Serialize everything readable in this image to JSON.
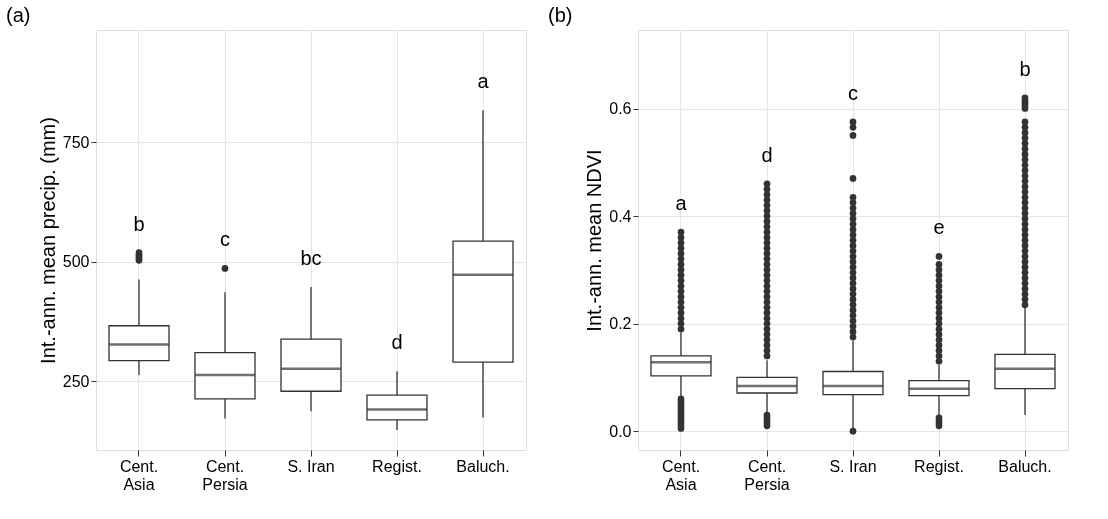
{
  "chart_data": [
    {
      "type": "box",
      "title": "(a)",
      "ylabel": "Int.-ann. mean precip. (mm)",
      "categories": [
        "Cent.\nAsia",
        "Cent.\nPersia",
        "S. Iran",
        "Regist.",
        "Baluch."
      ],
      "ylim": [
        106,
        985
      ],
      "yticks": [
        250,
        500,
        750
      ],
      "grid": true,
      "boxes": [
        {
          "low": 263,
          "q1": 293,
          "median": 327,
          "q3": 366,
          "high": 463,
          "outliers": [
            503,
            507,
            511,
            515,
            519
          ]
        },
        {
          "low": 172,
          "q1": 213,
          "median": 263,
          "q3": 310,
          "high": 436,
          "outliers": [
            486
          ]
        },
        {
          "low": 187,
          "q1": 229,
          "median": 276,
          "q3": 338,
          "high": 447
        },
        {
          "low": 148,
          "q1": 169,
          "median": 191,
          "q3": 221,
          "high": 271
        },
        {
          "low": 174,
          "q1": 290,
          "median": 473,
          "q3": 543,
          "high": 817
        }
      ],
      "annotations": [
        "b",
        "c",
        "bc",
        "d",
        "a"
      ]
    },
    {
      "type": "box",
      "title": "(b)",
      "ylabel": "Int.-ann. mean NDVI",
      "categories": [
        "Cent.\nAsia",
        "Cent.\nPersia",
        "S. Iran",
        "Regist.",
        "Baluch."
      ],
      "ylim": [
        -0.035,
        0.746
      ],
      "yticks": [
        {
          "value": 0,
          "label": "0.0"
        },
        0.2,
        0.4,
        0.6
      ],
      "grid": true,
      "boxes": [
        {
          "low": 0.065,
          "q1": 0.103,
          "median": 0.128,
          "q3": 0.14,
          "high": 0.184,
          "outliers": [
            0.005,
            0.01,
            0.015,
            0.02,
            0.025,
            0.03,
            0.035,
            0.04,
            0.045,
            0.05,
            0.055,
            0.06,
            0.19,
            0.2,
            0.21,
            0.22,
            0.23,
            0.24,
            0.25,
            0.26,
            0.27,
            0.28,
            0.29,
            0.3,
            0.31,
            0.32,
            0.33,
            0.34,
            0.35,
            0.36,
            0.37
          ]
        },
        {
          "low": 0.035,
          "q1": 0.071,
          "median": 0.084,
          "q3": 0.1,
          "high": 0.132,
          "outliers": [
            0.01,
            0.015,
            0.02,
            0.025,
            0.03,
            0.14,
            0.15,
            0.16,
            0.17,
            0.18,
            0.19,
            0.2,
            0.21,
            0.22,
            0.23,
            0.24,
            0.25,
            0.26,
            0.27,
            0.28,
            0.29,
            0.3,
            0.31,
            0.32,
            0.33,
            0.34,
            0.35,
            0.36,
            0.37,
            0.38,
            0.39,
            0.4,
            0.41,
            0.42,
            0.43,
            0.44,
            0.45,
            0.46
          ]
        },
        {
          "low": 0.006,
          "q1": 0.068,
          "median": 0.084,
          "q3": 0.111,
          "high": 0.168,
          "outliers": [
            0.0,
            0.175,
            0.185,
            0.195,
            0.205,
            0.215,
            0.225,
            0.235,
            0.245,
            0.255,
            0.265,
            0.275,
            0.285,
            0.295,
            0.305,
            0.315,
            0.325,
            0.335,
            0.345,
            0.355,
            0.365,
            0.375,
            0.385,
            0.395,
            0.405,
            0.415,
            0.425,
            0.435,
            0.47,
            0.55,
            0.565,
            0.575
          ]
        },
        {
          "low": 0.029,
          "q1": 0.066,
          "median": 0.079,
          "q3": 0.094,
          "high": 0.123,
          "outliers": [
            0.01,
            0.015,
            0.02,
            0.025,
            0.13,
            0.14,
            0.15,
            0.16,
            0.17,
            0.18,
            0.19,
            0.2,
            0.21,
            0.22,
            0.23,
            0.24,
            0.25,
            0.26,
            0.27,
            0.28,
            0.29,
            0.3,
            0.31,
            0.325
          ]
        },
        {
          "low": 0.03,
          "q1": 0.079,
          "median": 0.116,
          "q3": 0.143,
          "high": 0.229,
          "outliers": [
            0.235,
            0.245,
            0.255,
            0.265,
            0.275,
            0.285,
            0.295,
            0.305,
            0.315,
            0.325,
            0.335,
            0.345,
            0.355,
            0.365,
            0.375,
            0.385,
            0.395,
            0.405,
            0.415,
            0.425,
            0.435,
            0.445,
            0.455,
            0.465,
            0.475,
            0.485,
            0.495,
            0.505,
            0.515,
            0.525,
            0.535,
            0.545,
            0.555,
            0.565,
            0.575,
            0.6,
            0.605,
            0.61,
            0.615,
            0.62
          ]
        }
      ],
      "annotations": [
        "a",
        "d",
        "c",
        "e",
        "b"
      ]
    }
  ]
}
